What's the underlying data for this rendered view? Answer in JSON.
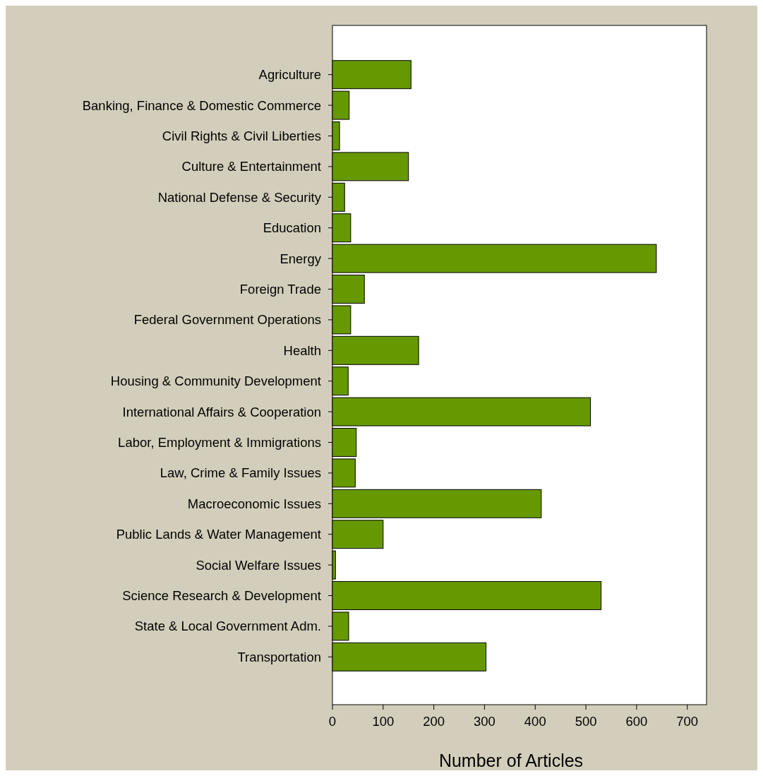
{
  "chart_data": {
    "type": "bar",
    "orientation": "horizontal",
    "xlabel": "Number of Articles",
    "categories": [
      "Agriculture",
      "Banking, Finance & Domestic Commerce",
      "Civil Rights & Civil Liberties",
      "Culture & Entertainment",
      "National Defense & Security",
      "Education",
      "Energy",
      "Foreign Trade",
      "Federal Government Operations",
      "Health",
      "Housing & Community Development",
      "International Affairs & Cooperation",
      "Labor, Employment & Immigrations",
      "Law, Crime & Family Issues",
      "Macroeconomic Issues",
      "Public Lands & Water Management",
      "Social Welfare Issues",
      "Science Research & Development",
      "State & Local Government Adm.",
      "Transportation"
    ],
    "values": [
      155,
      33,
      14,
      150,
      24,
      36,
      639,
      63,
      36,
      170,
      31,
      509,
      47,
      45,
      412,
      100,
      6,
      530,
      32,
      303
    ],
    "color": "#669900",
    "xlim": [
      0,
      738
    ],
    "xticks": [
      0,
      100,
      200,
      300,
      400,
      500,
      600,
      700
    ]
  }
}
